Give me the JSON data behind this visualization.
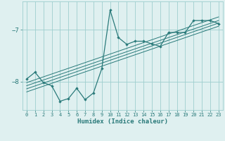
{
  "background_color": "#dff0f0",
  "grid_color": "#9ecece",
  "line_color": "#2a7a7a",
  "xlabel": "Humidex (Indice chaleur)",
  "xlim": [
    -0.5,
    23.5
  ],
  "ylim": [
    -8.55,
    -6.45
  ],
  "yticks": [
    -8,
    -7
  ],
  "xticks": [
    0,
    1,
    2,
    3,
    4,
    5,
    6,
    7,
    8,
    9,
    10,
    11,
    12,
    13,
    14,
    15,
    16,
    17,
    18,
    19,
    20,
    21,
    22,
    23
  ],
  "main_line_x": [
    0,
    1,
    2,
    3,
    4,
    5,
    6,
    7,
    8,
    9,
    10,
    11,
    12,
    13,
    14,
    15,
    16,
    17,
    18,
    19,
    20,
    21,
    22,
    23
  ],
  "main_line_y": [
    -7.95,
    -7.82,
    -8.02,
    -8.08,
    -8.38,
    -8.33,
    -8.13,
    -8.35,
    -8.22,
    -7.75,
    -6.62,
    -7.15,
    -7.28,
    -7.22,
    -7.22,
    -7.27,
    -7.32,
    -7.05,
    -7.05,
    -7.05,
    -6.82,
    -6.82,
    -6.82,
    -6.88
  ],
  "reg_lines": [
    {
      "x": [
        0,
        23
      ],
      "y": [
        -8.02,
        -6.75
      ]
    },
    {
      "x": [
        0,
        23
      ],
      "y": [
        -8.08,
        -6.82
      ]
    },
    {
      "x": [
        0,
        23
      ],
      "y": [
        -8.14,
        -6.87
      ]
    },
    {
      "x": [
        0,
        23
      ],
      "y": [
        -8.2,
        -6.93
      ]
    }
  ]
}
